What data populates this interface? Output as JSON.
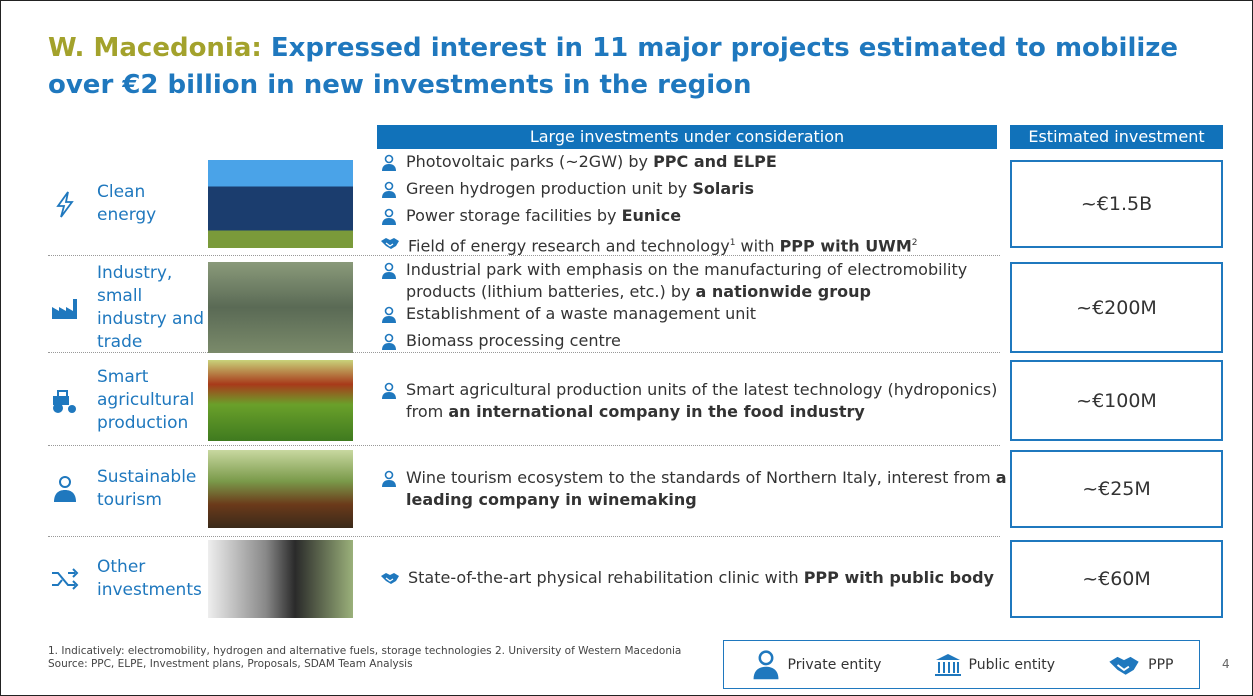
{
  "header": {
    "title_lead": "W. Macedonia:",
    "title_rest": "Expressed interest in 11 major projects estimated to mobilize over €2 billion in new investments in the region"
  },
  "table": {
    "columns": [
      "Large investments under consideration",
      "Estimated investment"
    ],
    "rows": [
      {
        "label": "Clean energy",
        "investment": "~€1.5B",
        "items": [
          {
            "icon": 0,
            "runs": [
              {
                "t": "Photovoltaic parks (~2GW) by "
              },
              {
                "t": "PPC and ELPE",
                "b": true
              }
            ]
          },
          {
            "icon": 0,
            "runs": [
              {
                "t": "Green hydrogen production unit by "
              },
              {
                "t": "Solaris",
                "b": true
              }
            ]
          },
          {
            "icon": 0,
            "runs": [
              {
                "t": "Power storage facilities by "
              },
              {
                "t": "Eunice",
                "b": true
              }
            ]
          },
          {
            "icon": 2,
            "runs": [
              {
                "t": "Field of energy research and technology"
              },
              {
                "t": "1",
                "sup": true
              },
              {
                "t": " with "
              },
              {
                "t": "PPP with UWM",
                "b": true
              },
              {
                "t": "2",
                "sup": true
              }
            ]
          }
        ]
      },
      {
        "label": "Industry, small industry and trade",
        "investment": "~€200M",
        "items": [
          {
            "icon": 0,
            "runs": [
              {
                "t": "Industrial park with emphasis on the manufacturing of electromobility products (lithium batteries, etc.) by "
              },
              {
                "t": "a nationwide group",
                "b": true
              }
            ]
          },
          {
            "icon": 0,
            "runs": [
              {
                "t": "Establishment of a waste management unit"
              }
            ]
          },
          {
            "icon": 0,
            "runs": [
              {
                "t": "Biomass processing centre"
              }
            ]
          }
        ]
      },
      {
        "label": "Smart agricultural production",
        "investment": "~€100M",
        "items": [
          {
            "icon": 0,
            "runs": [
              {
                "t": "Smart agricultural production units of the latest technology (hydroponics) from "
              },
              {
                "t": "an international company in the food industry",
                "b": true
              }
            ]
          }
        ]
      },
      {
        "label": "Sustainable tourism",
        "investment": "~€25M",
        "items": [
          {
            "icon": 0,
            "runs": [
              {
                "t": "Wine tourism ecosystem to the standards of Northern Italy, interest from "
              },
              {
                "t": "a leading company in winemaking",
                "b": true
              }
            ]
          }
        ]
      },
      {
        "label": "Other investments",
        "investment": "~€60M",
        "items": [
          {
            "icon": 2,
            "runs": [
              {
                "t": "State-of-the-art physical rehabilitation clinic with "
              },
              {
                "t": "PPP with public body",
                "b": true
              }
            ]
          }
        ]
      }
    ]
  },
  "footnote": "1. Indicatively: electromobility, hydrogen and alternative fuels, storage technologies 2. University of Western Macedonia Source: PPC, ELPE, Investment plans, Proposals, SDAM Team Analysis",
  "legend": {
    "items": [
      "Private entity",
      "Public entity",
      "PPP"
    ]
  },
  "page_number": "4"
}
